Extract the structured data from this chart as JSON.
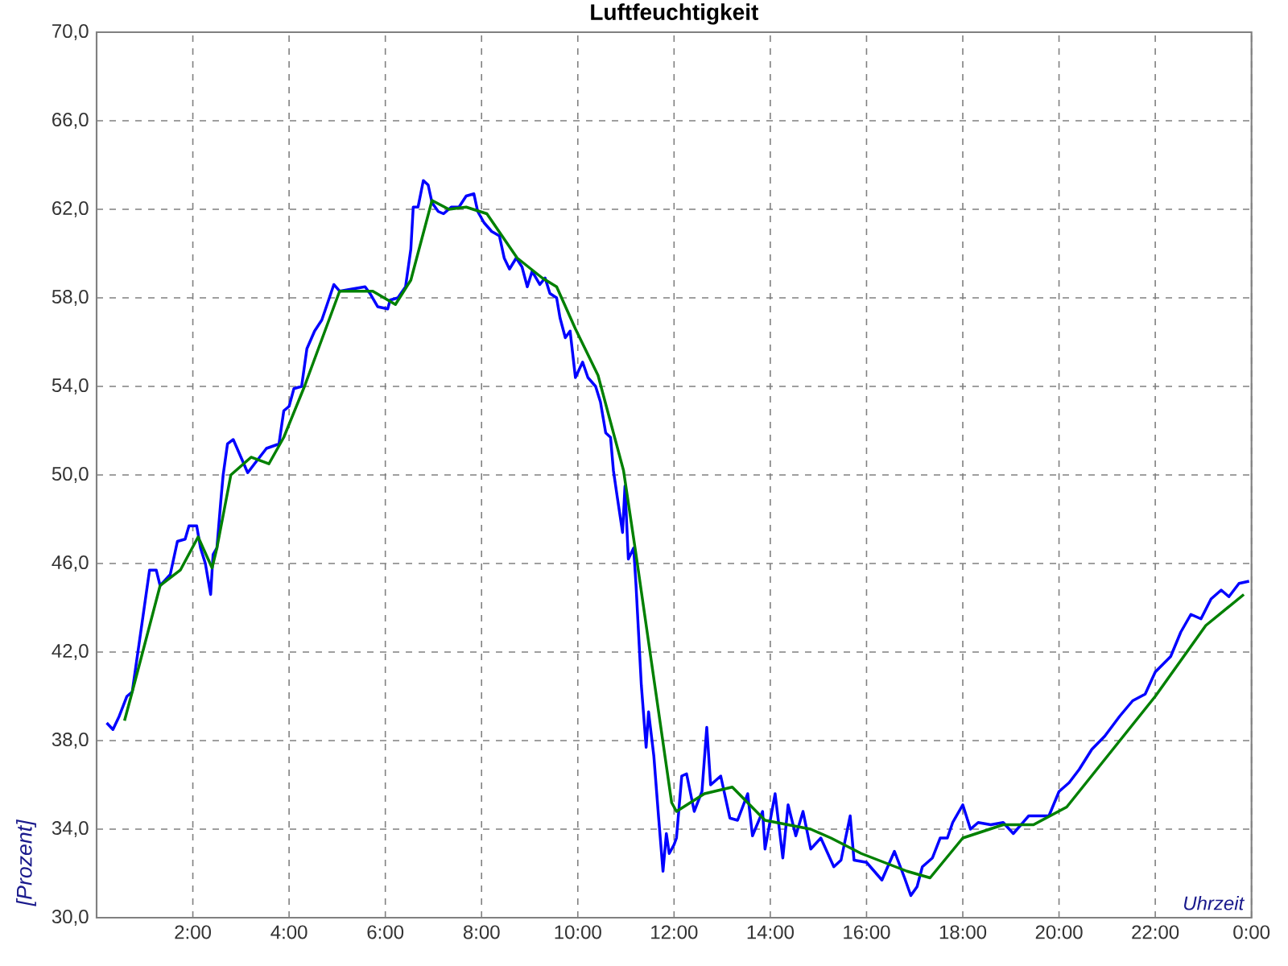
{
  "chart_data": {
    "type": "line",
    "title": "Luftfeuchtigkeit",
    "xlabel": "Uhrzeit",
    "ylabel": "[Prozent]",
    "xlim": [
      0,
      24
    ],
    "ylim": [
      30,
      70
    ],
    "xticks": [
      {
        "value": 0,
        "label": null
      },
      {
        "value": 2,
        "label": "2:00"
      },
      {
        "value": 4,
        "label": "4:00"
      },
      {
        "value": 6,
        "label": "6:00"
      },
      {
        "value": 8,
        "label": "8:00"
      },
      {
        "value": 10,
        "label": "10:00"
      },
      {
        "value": 12,
        "label": "12:00"
      },
      {
        "value": 14,
        "label": "14:00"
      },
      {
        "value": 16,
        "label": "16:00"
      },
      {
        "value": 18,
        "label": "18:00"
      },
      {
        "value": 20,
        "label": "20:00"
      },
      {
        "value": 22,
        "label": "22:00"
      },
      {
        "value": 24,
        "label": "0:00"
      }
    ],
    "yticks": [
      {
        "value": 30,
        "label": "30,0"
      },
      {
        "value": 34,
        "label": "34,0"
      },
      {
        "value": 38,
        "label": "38,0"
      },
      {
        "value": 42,
        "label": "42,0"
      },
      {
        "value": 46,
        "label": "46,0"
      },
      {
        "value": 50,
        "label": "50,0"
      },
      {
        "value": 54,
        "label": "54,0"
      },
      {
        "value": 58,
        "label": "58,0"
      },
      {
        "value": 62,
        "label": "62,0"
      },
      {
        "value": 66,
        "label": "66,0"
      },
      {
        "value": 70,
        "label": "70,0"
      }
    ],
    "grid": true,
    "line_style": "solid",
    "marker": "none",
    "series": [
      {
        "color": "#0000ff",
        "x": [
          0.21,
          0.34,
          0.47,
          0.63,
          0.74,
          0.95,
          1.1,
          1.24,
          1.32,
          1.53,
          1.68,
          1.84,
          1.92,
          2.08,
          2.16,
          2.26,
          2.37,
          2.42,
          2.5,
          2.58,
          2.63,
          2.72,
          2.84,
          3.0,
          3.14,
          3.28,
          3.53,
          3.79,
          3.89,
          4.0,
          4.1,
          4.26,
          4.37,
          4.53,
          4.68,
          4.79,
          4.93,
          5.05,
          5.31,
          5.58,
          5.68,
          5.84,
          6.05,
          6.1,
          6.26,
          6.42,
          6.53,
          6.58,
          6.68,
          6.79,
          6.89,
          6.97,
          7.1,
          7.21,
          7.37,
          7.53,
          7.68,
          7.84,
          7.92,
          8.05,
          8.21,
          8.37,
          8.47,
          8.58,
          8.72,
          8.84,
          8.95,
          9.05,
          9.21,
          9.32,
          9.42,
          9.56,
          9.63,
          9.74,
          9.84,
          9.95,
          10.1,
          10.21,
          10.37,
          10.47,
          10.58,
          10.68,
          10.74,
          10.82,
          10.93,
          10.98,
          11.05,
          11.16,
          11.21,
          11.32,
          11.42,
          11.47,
          11.58,
          11.68,
          11.77,
          11.84,
          11.9,
          12.0,
          12.05,
          12.16,
          12.26,
          12.42,
          12.58,
          12.68,
          12.76,
          12.97,
          13.16,
          13.32,
          13.53,
          13.63,
          13.84,
          13.89,
          14.1,
          14.26,
          14.37,
          14.53,
          14.68,
          14.84,
          15.05,
          15.32,
          15.47,
          15.66,
          15.74,
          16.0,
          16.32,
          16.58,
          16.79,
          16.92,
          17.05,
          17.16,
          17.37,
          17.53,
          17.68,
          17.79,
          18.0,
          18.16,
          18.32,
          18.58,
          18.84,
          19.05,
          19.37,
          19.79,
          20.0,
          20.21,
          20.42,
          20.68,
          20.95,
          21.26,
          21.53,
          21.79,
          22.0,
          22.32,
          22.53,
          22.74,
          22.95,
          23.16,
          23.37,
          23.53,
          23.74,
          23.95
        ],
        "values": [
          38.8,
          38.5,
          39.1,
          40.0,
          40.2,
          43.4,
          45.7,
          45.7,
          45.0,
          45.5,
          47.0,
          47.1,
          47.7,
          47.7,
          46.7,
          46.0,
          44.6,
          46.4,
          46.7,
          48.8,
          50.0,
          51.4,
          51.6,
          50.8,
          50.1,
          50.5,
          51.2,
          51.4,
          52.9,
          53.1,
          53.9,
          54.0,
          55.7,
          56.5,
          57.0,
          57.7,
          58.6,
          58.3,
          58.4,
          58.5,
          58.2,
          57.6,
          57.5,
          57.9,
          58.0,
          58.5,
          60.2,
          62.1,
          62.1,
          63.3,
          63.1,
          62.3,
          61.9,
          61.8,
          62.1,
          62.1,
          62.6,
          62.7,
          61.9,
          61.4,
          61.0,
          60.8,
          59.8,
          59.3,
          59.8,
          59.4,
          58.5,
          59.2,
          58.6,
          58.9,
          58.2,
          58.0,
          57.1,
          56.2,
          56.5,
          54.4,
          55.1,
          54.4,
          54.0,
          53.3,
          51.9,
          51.7,
          50.2,
          49.0,
          47.4,
          49.5,
          46.2,
          46.7,
          45.0,
          40.5,
          37.7,
          39.3,
          37.3,
          34.5,
          32.1,
          33.8,
          32.9,
          33.3,
          33.6,
          36.4,
          36.5,
          34.8,
          35.7,
          38.6,
          36.0,
          36.4,
          34.5,
          34.4,
          35.6,
          33.7,
          34.8,
          33.1,
          35.6,
          32.7,
          35.1,
          33.7,
          34.8,
          33.1,
          33.6,
          32.3,
          32.6,
          34.6,
          32.6,
          32.5,
          31.7,
          33.0,
          31.8,
          31.0,
          31.4,
          32.3,
          32.7,
          33.6,
          33.6,
          34.3,
          35.1,
          34.0,
          34.3,
          34.2,
          34.3,
          33.8,
          34.6,
          34.6,
          35.7,
          36.1,
          36.7,
          37.6,
          38.2,
          39.1,
          39.8,
          40.1,
          41.1,
          41.8,
          42.9,
          43.7,
          43.5,
          44.4,
          44.8,
          44.5,
          45.1,
          45.2
        ]
      },
      {
        "color": "#008000",
        "x": [
          0.58,
          0.74,
          1.32,
          1.74,
          2.11,
          2.4,
          2.5,
          2.79,
          3.21,
          3.58,
          3.89,
          4.32,
          5.05,
          5.74,
          6.21,
          6.53,
          6.97,
          7.32,
          7.68,
          8.11,
          8.74,
          9.26,
          9.56,
          9.95,
          10.42,
          10.95,
          11.21,
          11.95,
          12.05,
          12.63,
          13.21,
          13.89,
          14.84,
          15.26,
          15.89,
          16.84,
          17.32,
          18.0,
          18.84,
          19.47,
          20.16,
          22.0,
          23.05,
          23.84
        ],
        "values": [
          38.9,
          40.2,
          45.0,
          45.7,
          47.2,
          45.8,
          46.7,
          50.0,
          50.8,
          50.5,
          51.7,
          54.0,
          58.3,
          58.3,
          57.7,
          58.8,
          62.4,
          62.0,
          62.1,
          61.8,
          59.8,
          58.9,
          58.5,
          56.6,
          54.5,
          50.2,
          46.4,
          35.2,
          34.8,
          35.6,
          35.9,
          34.4,
          34.0,
          33.6,
          32.9,
          32.1,
          31.8,
          33.6,
          34.2,
          34.2,
          35.0,
          40.0,
          43.2,
          44.6
        ]
      }
    ]
  }
}
